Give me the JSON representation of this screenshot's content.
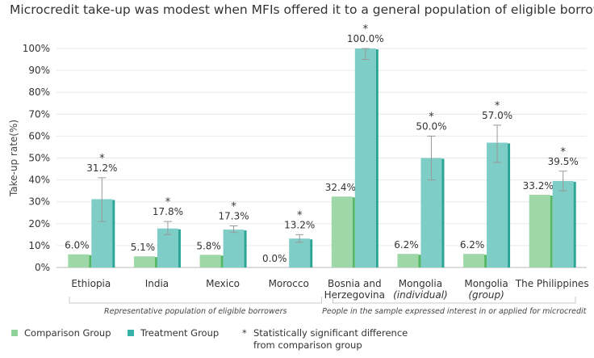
{
  "title": "Microcredit take-up was modest when MFIs offered it to a general population of eligible borrowers",
  "chart_data": {
    "type": "bar",
    "ylabel": "Take-up rate(%)",
    "ylim": [
      0,
      100
    ],
    "yticks": [
      "0%",
      "10%",
      "20%",
      "30%",
      "40%",
      "50%",
      "60%",
      "70%",
      "80%",
      "90%",
      "100%"
    ],
    "categories": [
      [
        "Ethiopia"
      ],
      [
        "India"
      ],
      [
        "Mexico"
      ],
      [
        "Morocco"
      ],
      [
        "Bosnia and",
        "Herzegovina"
      ],
      [
        "Mongolia",
        "(individual)"
      ],
      [
        "Mongolia",
        "(group)"
      ],
      [
        "The Philippines"
      ]
    ],
    "series": [
      {
        "name": "Comparison Group",
        "color": "#9fd8a8",
        "values": [
          6.0,
          5.1,
          5.8,
          0.0,
          32.4,
          6.2,
          6.2,
          33.2
        ],
        "labels": [
          "6.0%",
          "5.1%",
          "5.8%",
          "0.0%",
          "32.4%",
          "6.2%",
          "6.2%",
          "33.2%"
        ]
      },
      {
        "name": "Treatment Group",
        "color": "#7fcdc7",
        "values": [
          31.2,
          17.8,
          17.3,
          13.2,
          100.0,
          50.0,
          57.0,
          39.5
        ],
        "labels": [
          "31.2%",
          "17.8%",
          "17.3%",
          "13.2%",
          "100.0%",
          "50.0%",
          "57.0%",
          "39.5%"
        ],
        "error_bars": [
          [
            21,
            41
          ],
          [
            15,
            21
          ],
          [
            16,
            19
          ],
          [
            11.5,
            15
          ],
          [
            95,
            100
          ],
          [
            40,
            60
          ],
          [
            48,
            65
          ],
          [
            35,
            44
          ]
        ]
      }
    ],
    "significant": [
      true,
      true,
      true,
      true,
      true,
      true,
      true,
      true
    ],
    "groups": [
      {
        "label": "Representative population of eligible borrowers",
        "categories": [
          0,
          3
        ]
      },
      {
        "label": "People in the sample expressed interest in or applied for microcredit",
        "categories": [
          4,
          7
        ]
      }
    ],
    "legend_position": "bottom-left"
  },
  "legend": {
    "comparison": "Comparison Group",
    "treatment": "Treatment Group",
    "star_symbol": "*",
    "significance": "Statistically significant difference from comparison group"
  }
}
